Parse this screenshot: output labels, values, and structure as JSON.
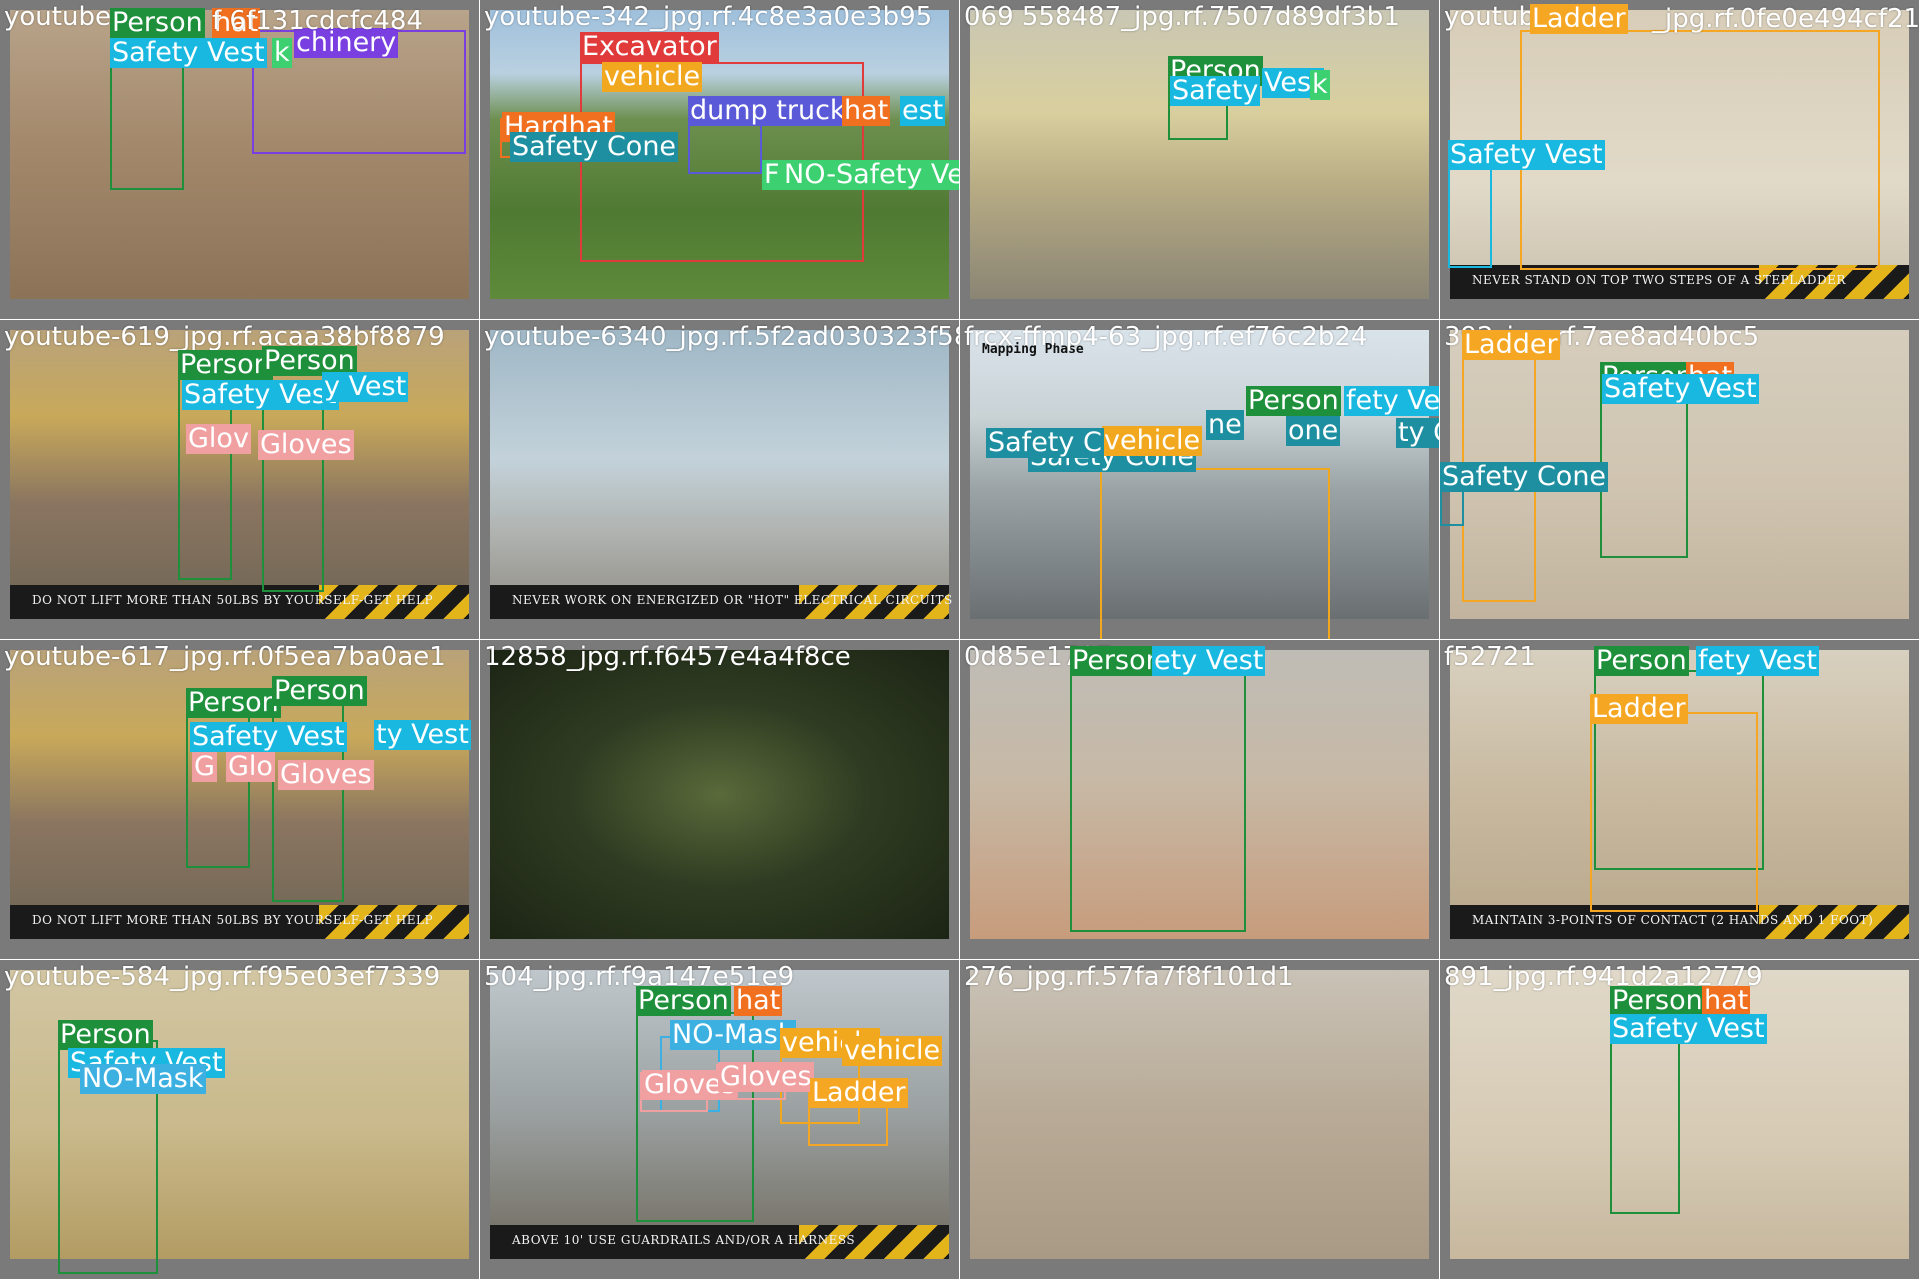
{
  "palette": {
    "person": "#1e8f3a",
    "safety_vest": "#18b8e0",
    "hardhat": "#f07020",
    "machinery": "#7a3fe0",
    "excavator": "#e03a3a",
    "vehicle": "#f2a81e",
    "dump_truck": "#5a5ad8",
    "safety_cone": "#1e8fa0",
    "no_safety_vest": "#3cd070",
    "ladder": "#f5a623",
    "gloves": "#f0a0a0",
    "no_mask": "#3cb0e0",
    "tile_bg": "#7a7a7a"
  },
  "tiles": [
    {
      "filename": "youtube-hat-6f131cdcfc484-youtube-342_jpg.rf.4c8e3a0e3b9",
      "filename_display": "youtube",
      "scene": "dirt",
      "labels": [
        {
          "text": "Person",
          "class": "person"
        },
        {
          "text": "hat",
          "class": "hardhat"
        },
        {
          "text": "Safety Vest",
          "class": "safety_vest"
        },
        {
          "text": "k",
          "class": "no_safety_vest"
        },
        {
          "text": "chinery",
          "class": "machinery"
        },
        {
          "text": "f 6f131cdcfc484",
          "class": "fname"
        }
      ]
    },
    {
      "filename": "youtube-342_jpg.rf.4c8e3a0e3b9",
      "filename_display": "youtube-342_jpg.rf.4c8e3a0e3b95",
      "scene": "grass",
      "labels": [
        {
          "text": "Excavator",
          "class": "excavator"
        },
        {
          "text": "vehicle",
          "class": "vehicle"
        },
        {
          "text": "Hardhat",
          "class": "hardhat"
        },
        {
          "text": "dump truck",
          "class": "dump_truck"
        },
        {
          "text": "hat",
          "class": "hardhat"
        },
        {
          "text": "est",
          "class": "safety_vest"
        },
        {
          "text": "Safety Cone",
          "class": "safety_cone"
        },
        {
          "text": "NO-Safety Vest",
          "class": "no_safety_vest"
        },
        {
          "text": "F",
          "class": "no_safety_vest"
        }
      ]
    },
    {
      "filename": "youtube-558487_jpg.rf.7507d89df3b1",
      "filename_display": "069 558487_jpg.rf.7507d89df3b1",
      "scene": "house",
      "labels": [
        {
          "text": "Person",
          "class": "person"
        },
        {
          "text": "Vest",
          "class": "safety_vest"
        },
        {
          "text": "Safety",
          "class": "safety_vest"
        },
        {
          "text": "k",
          "class": "no_safety_vest"
        }
      ]
    },
    {
      "filename": "youtube-_jpg.rf.0fe0e494cf21",
      "filename_display": "youtube",
      "scene": "wood",
      "caption": "NEVER STAND ON TOP TWO STEPS OF A STEPLADDER",
      "labels": [
        {
          "text": "Ladder",
          "class": "ladder"
        },
        {
          "text": "Safety Vest",
          "class": "safety_vest"
        },
        {
          "text": "_jpg.rf.0fe0e494cf21",
          "class": "fname"
        }
      ]
    },
    {
      "filename": "youtube-619_jpg.rf.acaa38bf8879",
      "filename_display": "youtube-619_jpg.rf.acaa38bf8879",
      "scene": "framing",
      "caption": "DO NOT LIFT MORE THAN 50LBS BY YOURSELF-GET HELP",
      "labels": [
        {
          "text": "Person",
          "class": "person"
        },
        {
          "text": "Person",
          "class": "person"
        },
        {
          "text": "Safety Vest",
          "class": "safety_vest"
        },
        {
          "text": "y Vest",
          "class": "safety_vest"
        },
        {
          "text": "Glov",
          "class": "gloves"
        },
        {
          "text": "Gloves",
          "class": "gloves"
        }
      ]
    },
    {
      "filename": "youtube-6340_jpg.rf.5f2ad030323f58",
      "filename_display": "youtube-6340_jpg.rf.5f2ad030323f58",
      "scene": "sky",
      "caption": "NEVER WORK ON ENERGIZED OR \"HOT\" ELECTRICAL CIRCUITS",
      "labels": []
    },
    {
      "filename": "frcx-ffmp4-63_jpg.rf.ef76c2b24",
      "filename_display": "frcx-ffmp4-63_jpg.rf.ef76c2b24",
      "scene": "road",
      "overlay": "Mapping Phase",
      "labels": [
        {
          "text": "Person",
          "class": "person"
        },
        {
          "text": "fety Vest",
          "class": "safety_vest"
        },
        {
          "text": "Safety Cone",
          "class": "safety_cone"
        },
        {
          "text": "ty Cone",
          "class": "safety_cone"
        },
        {
          "text": "vehicle",
          "class": "vehicle"
        },
        {
          "text": "Safety C",
          "class": "safety_cone"
        },
        {
          "text": "ne",
          "class": "safety_cone"
        },
        {
          "text": "one",
          "class": "safety_cone"
        }
      ]
    },
    {
      "filename": "youtube-392_jpg.rf.7ae8ad40bc5",
      "filename_display": "392_jpg.rf.7ae8ad40bc5",
      "scene": "interior",
      "labels": [
        {
          "text": "Ladder",
          "class": "ladder"
        },
        {
          "text": "Person",
          "class": "person"
        },
        {
          "text": "hat",
          "class": "hardhat"
        },
        {
          "text": "Safety Vest",
          "class": "safety_vest"
        },
        {
          "text": "Safety Cone",
          "class": "safety_cone"
        }
      ]
    },
    {
      "filename": "youtube-617_jpg.rf.0f5ea7ba0ae1",
      "filename_display": "youtube-617_jpg.rf.0f5ea7ba0ae1",
      "scene": "framing",
      "caption": "DO NOT LIFT MORE THAN 50LBS BY YOURSELF-GET HELP",
      "labels": [
        {
          "text": "Person",
          "class": "person"
        },
        {
          "text": "Person",
          "class": "person"
        },
        {
          "text": "Safety Vest",
          "class": "safety_vest"
        },
        {
          "text": "ty Vest",
          "class": "safety_vest"
        },
        {
          "text": "G",
          "class": "gloves"
        },
        {
          "text": "Glo",
          "class": "gloves"
        },
        {
          "text": "Gloves",
          "class": "gloves"
        }
      ]
    },
    {
      "filename": "youtube-12858_jpg.rf.f6457e4a4f8ce",
      "filename_display": "12858_jpg.rf.f6457e4a4f8ce",
      "scene": "leaves",
      "labels": []
    },
    {
      "filename": "youtube-0d85e1707",
      "filename_display": "0d85e1707",
      "scene": "blur",
      "labels": [
        {
          "text": "Person",
          "class": "person"
        },
        {
          "text": "ety Vest",
          "class": "safety_vest"
        }
      ]
    },
    {
      "filename": "youtube-f52721",
      "filename_display": "f52721",
      "scene": "ladder2",
      "caption": "MAINTAIN 3-POINTS OF CONTACT (2 HANDS AND 1 FOOT)",
      "labels": [
        {
          "text": "Person",
          "class": "person"
        },
        {
          "text": "fety Vest",
          "class": "safety_vest"
        },
        {
          "text": "Ladder",
          "class": "ladder"
        }
      ]
    },
    {
      "filename": "youtube-584_jpg.rf.f95e03ef7339",
      "filename_display": "youtube-584_jpg.rf.f95e03ef7339",
      "scene": "room",
      "labels": [
        {
          "text": "Person",
          "class": "person"
        },
        {
          "text": "Safety Vest",
          "class": "safety_vest"
        },
        {
          "text": "NO-Mask",
          "class": "no_mask"
        }
      ]
    },
    {
      "filename": "youtube-504_jpg.rf.f9a147e51e9",
      "filename_display": "504_jpg.rf.f9a147e51e9",
      "scene": "scaffold",
      "caption": "ABOVE 10' USE GUARDRAILS AND/OR A HARNESS",
      "labels": [
        {
          "text": "Person",
          "class": "person"
        },
        {
          "text": "hat",
          "class": "hardhat"
        },
        {
          "text": "NO-Mask",
          "class": "no_mask"
        },
        {
          "text": "vehicle",
          "class": "vehicle"
        },
        {
          "text": "vehicle",
          "class": "vehicle"
        },
        {
          "text": "Gloves",
          "class": "gloves"
        },
        {
          "text": "Gloves",
          "class": "gloves"
        },
        {
          "text": "Ladder",
          "class": "ladder"
        }
      ]
    },
    {
      "filename": "youtube-276_jpg.rf.57fa7f8f101d1",
      "filename_display": "276_jpg.rf.57fa7f8f101d1",
      "scene": "blur2",
      "labels": []
    },
    {
      "filename": "youtube-891_jpg.rf.941d2a12779",
      "filename_display": "891_jpg.rf.941d2a12779",
      "scene": "framing2",
      "labels": [
        {
          "text": "Person",
          "class": "person"
        },
        {
          "text": "hat",
          "class": "hardhat"
        },
        {
          "text": "Safety Vest",
          "class": "safety_vest"
        }
      ]
    }
  ]
}
